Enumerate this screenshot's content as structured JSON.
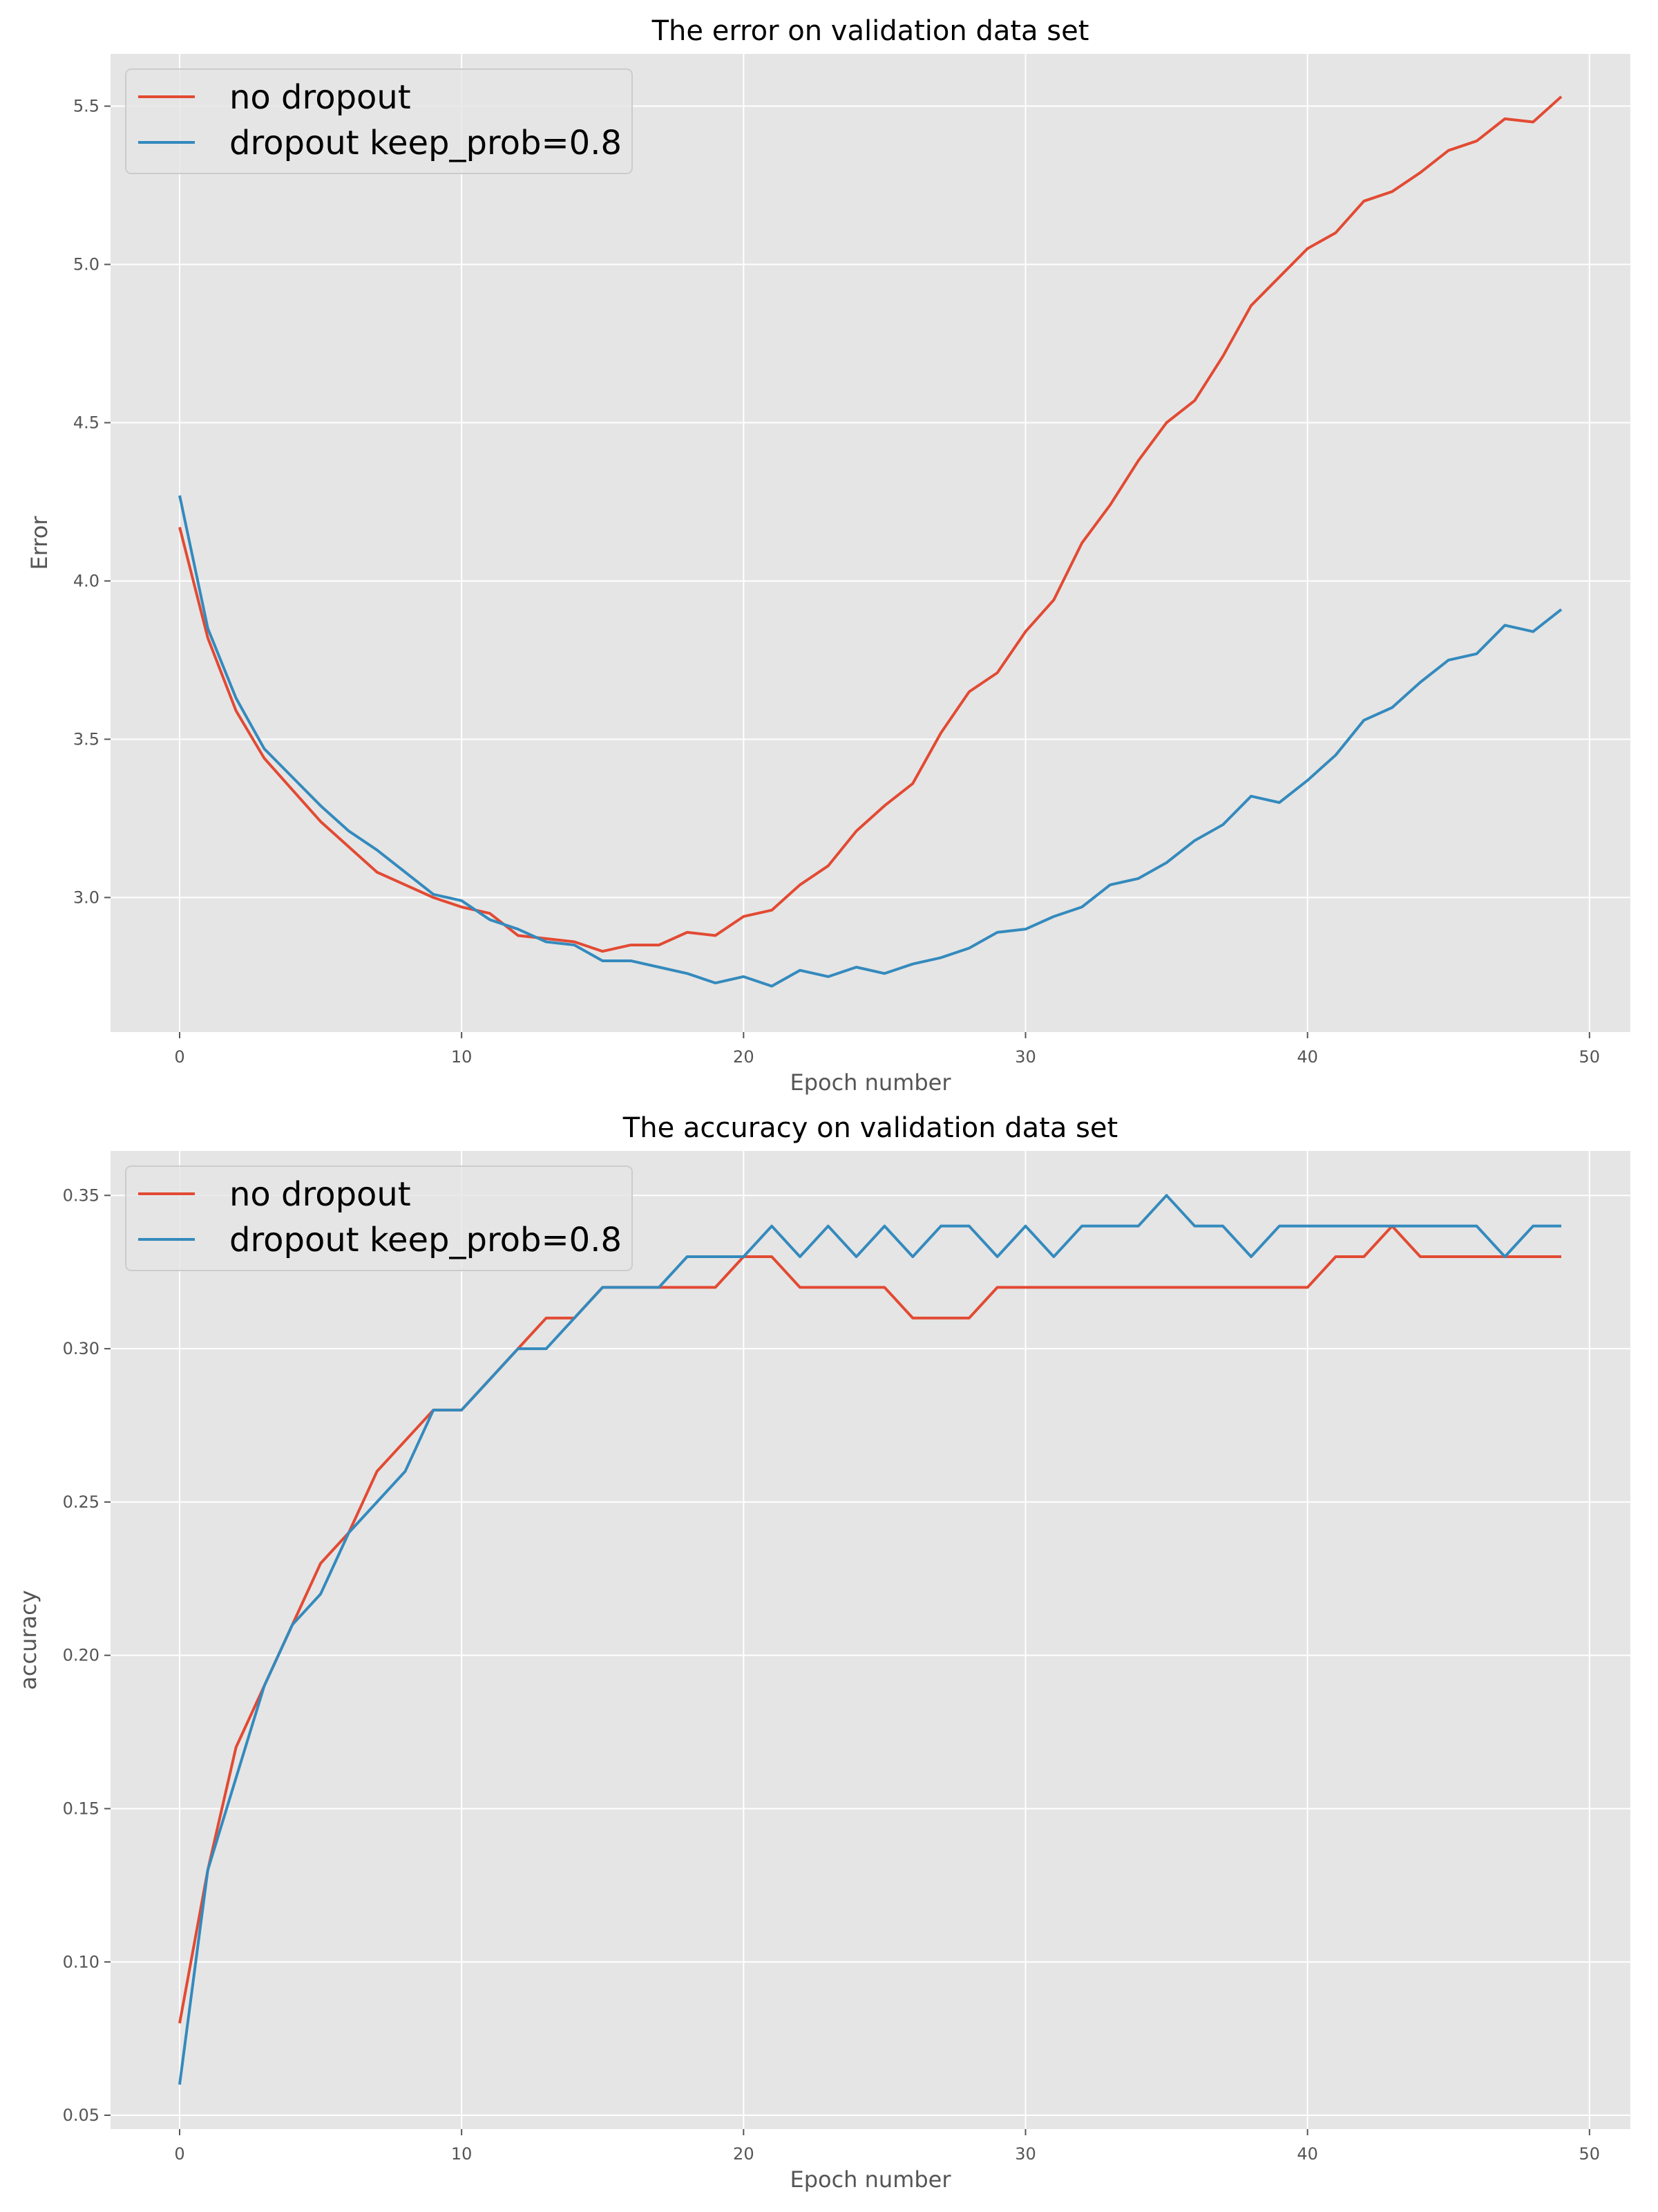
{
  "colors": {
    "no_dropout": "#e24a33",
    "dropout": "#348abd",
    "panel_bg": "#e5e5e5",
    "grid": "#ffffff",
    "tick_text": "#555555"
  },
  "chart_data": [
    {
      "type": "line",
      "title": "The error on validation data set",
      "xlabel": "Epoch number",
      "ylabel": "Error",
      "xlim": [
        -2.45,
        51.45
      ],
      "ylim": [
        2.575,
        5.665
      ],
      "xticks": [
        0,
        10,
        20,
        30,
        40,
        50
      ],
      "yticks": [
        3.0,
        3.5,
        4.0,
        4.5,
        5.0,
        5.5
      ],
      "ytick_labels": [
        "3.0",
        "3.5",
        "4.0",
        "4.5",
        "5.0",
        "5.5"
      ],
      "grid": true,
      "legend_position": "top-left",
      "x": [
        0,
        1,
        2,
        3,
        4,
        5,
        6,
        7,
        8,
        9,
        10,
        11,
        12,
        13,
        14,
        15,
        16,
        17,
        18,
        19,
        20,
        21,
        22,
        23,
        24,
        25,
        26,
        27,
        28,
        29,
        30,
        31,
        32,
        33,
        34,
        35,
        36,
        37,
        38,
        39,
        40,
        41,
        42,
        43,
        44,
        45,
        46,
        47,
        48,
        49
      ],
      "series": [
        {
          "name": "no dropout",
          "color_key": "no_dropout",
          "values": [
            4.17,
            3.82,
            3.59,
            3.44,
            3.34,
            3.24,
            3.16,
            3.08,
            3.04,
            3.0,
            2.97,
            2.95,
            2.88,
            2.87,
            2.86,
            2.83,
            2.85,
            2.85,
            2.89,
            2.88,
            2.94,
            2.96,
            3.04,
            3.1,
            3.21,
            3.29,
            3.36,
            3.52,
            3.65,
            3.71,
            3.84,
            3.94,
            4.12,
            4.24,
            4.38,
            4.5,
            4.57,
            4.71,
            4.87,
            4.96,
            5.05,
            5.1,
            5.2,
            5.23,
            5.29,
            5.36,
            5.39,
            5.46,
            5.45,
            5.53
          ]
        },
        {
          "name": "dropout keep_prob=0.8",
          "color_key": "dropout",
          "values": [
            4.27,
            3.85,
            3.63,
            3.47,
            3.38,
            3.29,
            3.21,
            3.15,
            3.08,
            3.01,
            2.99,
            2.93,
            2.9,
            2.86,
            2.85,
            2.8,
            2.8,
            2.78,
            2.76,
            2.73,
            2.75,
            2.72,
            2.77,
            2.75,
            2.78,
            2.76,
            2.79,
            2.81,
            2.84,
            2.89,
            2.9,
            2.94,
            2.97,
            3.04,
            3.06,
            3.11,
            3.18,
            3.23,
            3.32,
            3.3,
            3.37,
            3.45,
            3.56,
            3.6,
            3.68,
            3.75,
            3.77,
            3.86,
            3.84,
            3.91
          ]
        }
      ]
    },
    {
      "type": "line",
      "title": "The accuracy on validation data set",
      "xlabel": "Epoch number",
      "ylabel": "accuracy",
      "xlim": [
        -2.45,
        51.45
      ],
      "ylim": [
        0.0455,
        0.3645
      ],
      "xticks": [
        0,
        10,
        20,
        30,
        40,
        50
      ],
      "yticks": [
        0.05,
        0.1,
        0.15,
        0.2,
        0.25,
        0.3,
        0.35
      ],
      "ytick_labels": [
        "0.05",
        "0.10",
        "0.15",
        "0.20",
        "0.25",
        "0.30",
        "0.35"
      ],
      "grid": true,
      "legend_position": "top-left",
      "x": [
        0,
        1,
        2,
        3,
        4,
        5,
        6,
        7,
        8,
        9,
        10,
        11,
        12,
        13,
        14,
        15,
        16,
        17,
        18,
        19,
        20,
        21,
        22,
        23,
        24,
        25,
        26,
        27,
        28,
        29,
        30,
        31,
        32,
        33,
        34,
        35,
        36,
        37,
        38,
        39,
        40,
        41,
        42,
        43,
        44,
        45,
        46,
        47,
        48,
        49
      ],
      "series": [
        {
          "name": "no dropout",
          "color_key": "no_dropout",
          "values": [
            0.08,
            0.13,
            0.17,
            0.19,
            0.21,
            0.23,
            0.24,
            0.26,
            0.27,
            0.28,
            0.28,
            0.29,
            0.3,
            0.31,
            0.31,
            0.32,
            0.32,
            0.32,
            0.32,
            0.32,
            0.33,
            0.33,
            0.32,
            0.32,
            0.32,
            0.32,
            0.31,
            0.31,
            0.31,
            0.32,
            0.32,
            0.32,
            0.32,
            0.32,
            0.32,
            0.32,
            0.32,
            0.32,
            0.32,
            0.32,
            0.32,
            0.33,
            0.33,
            0.34,
            0.33,
            0.33,
            0.33,
            0.33,
            0.33,
            0.33
          ]
        },
        {
          "name": "dropout keep_prob=0.8",
          "color_key": "dropout",
          "values": [
            0.06,
            0.13,
            0.16,
            0.19,
            0.21,
            0.22,
            0.24,
            0.25,
            0.26,
            0.28,
            0.28,
            0.29,
            0.3,
            0.3,
            0.31,
            0.32,
            0.32,
            0.32,
            0.33,
            0.33,
            0.33,
            0.34,
            0.33,
            0.34,
            0.33,
            0.34,
            0.33,
            0.34,
            0.34,
            0.33,
            0.34,
            0.33,
            0.34,
            0.34,
            0.34,
            0.35,
            0.34,
            0.34,
            0.33,
            0.34,
            0.34,
            0.34,
            0.34,
            0.34,
            0.34,
            0.34,
            0.34,
            0.33,
            0.34,
            0.34
          ]
        }
      ]
    }
  ]
}
